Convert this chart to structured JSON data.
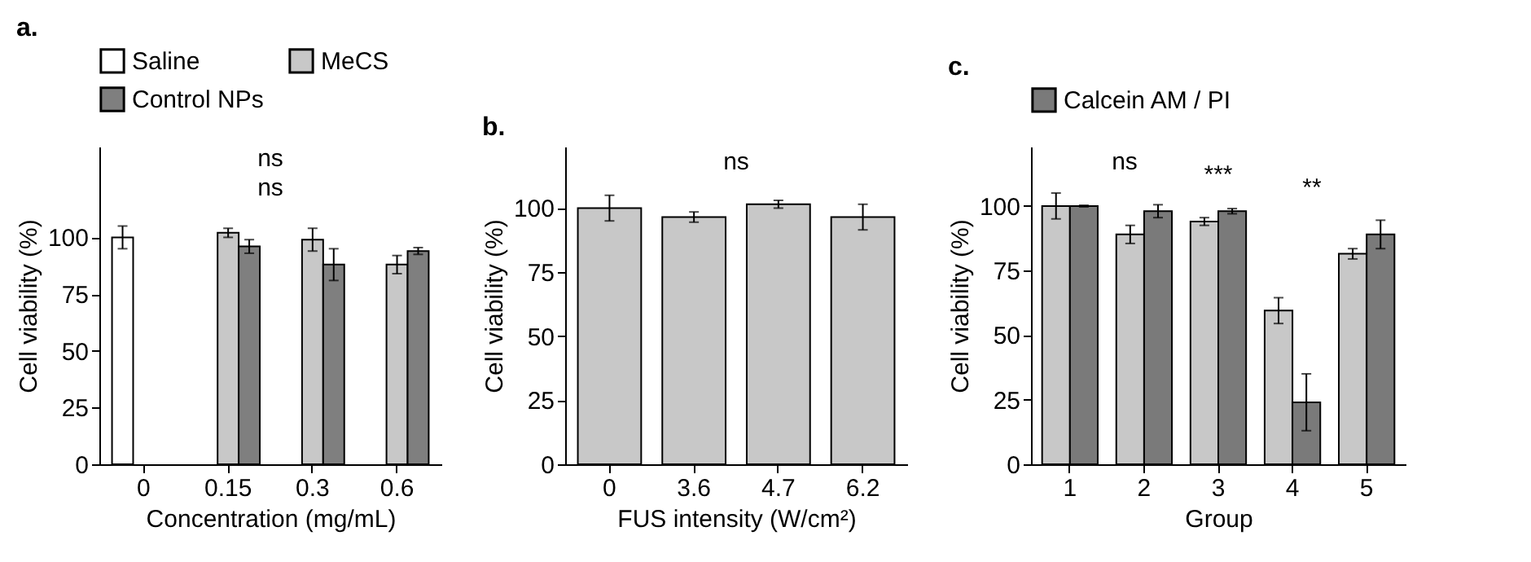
{
  "chart_data": [
    {
      "type": "bar",
      "title": "a.",
      "xlabel": "Concentration (mg/mL)",
      "ylabel": "Cell viability (%)",
      "categories": [
        "0",
        "0.15",
        "0.3",
        "0.6"
      ],
      "ylim": [
        0,
        140
      ],
      "yticks": [
        0,
        25,
        50,
        75,
        100
      ],
      "grid": false,
      "legend": "top left",
      "series": [
        {
          "name": "Saline",
          "color": "#ffffff",
          "values": [
            100,
            null,
            null,
            null
          ],
          "errors": [
            5,
            null,
            null,
            null
          ]
        },
        {
          "name": "MeCS",
          "color": "#c8c8c8",
          "values": [
            null,
            102,
            99,
            88
          ],
          "errors": [
            null,
            2,
            5,
            4
          ]
        },
        {
          "name": "Control NPs",
          "color": "#7f7f7f",
          "values": [
            null,
            96,
            88,
            94
          ],
          "errors": [
            null,
            3,
            7,
            1.5
          ]
        }
      ],
      "annotations": [
        "ns",
        "ns"
      ]
    },
    {
      "type": "bar",
      "title": "b.",
      "xlabel": "FUS intensity (W/cm²)",
      "ylabel": "Cell viability (%)",
      "categories": [
        "0",
        "3.6",
        "4.7",
        "6.2"
      ],
      "ylim": [
        0,
        124
      ],
      "yticks": [
        0,
        25,
        50,
        75,
        100
      ],
      "grid": false,
      "series": [
        {
          "color": "#c8c8c8",
          "values": [
            100,
            96.5,
            101.5,
            96.5
          ],
          "errors": [
            5,
            2,
            1.5,
            5
          ]
        }
      ],
      "annotations": [
        "ns"
      ]
    },
    {
      "type": "bar",
      "title": "c.",
      "xlabel": "Group",
      "ylabel": "Cell viability (%)",
      "categories": [
        "1",
        "2",
        "3",
        "4",
        "5"
      ],
      "ylim": [
        0,
        123
      ],
      "yticks": [
        0,
        25,
        50,
        75,
        100
      ],
      "grid": false,
      "legend": "top left",
      "series": [
        {
          "color": "#c8c8c8",
          "values": [
            100,
            89,
            94,
            59.5,
            81.5
          ],
          "errors": [
            5,
            3.5,
            1.5,
            5,
            2
          ]
        },
        {
          "name": "Calcein AM / PI",
          "color": "#7a7a7a",
          "values": [
            100,
            98,
            98,
            24,
            89
          ],
          "errors": [
            0.3,
            2.5,
            1,
            11,
            5.5
          ]
        }
      ],
      "annotations": [
        "ns",
        "***",
        "**"
      ]
    }
  ]
}
